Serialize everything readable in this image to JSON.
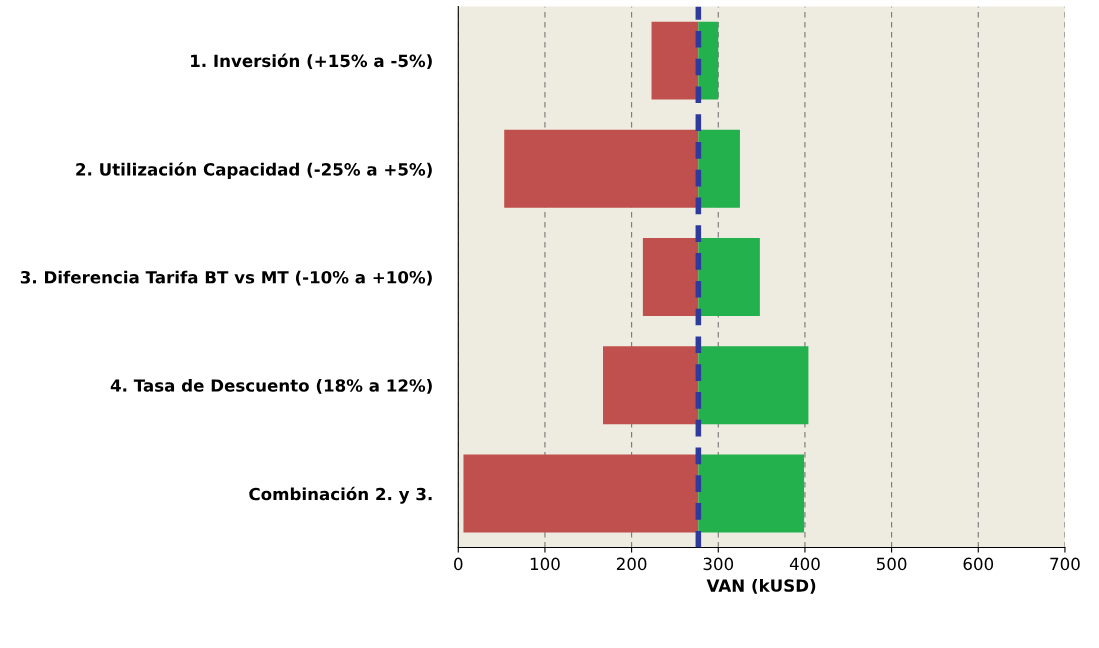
{
  "chart_data": {
    "type": "bar",
    "orientation": "horizontal",
    "xlabel": "VAN (kUSD)",
    "categories": [
      "1. Inversión (+15% a -5%)",
      "2. Utilización Capacidad (-25% a +5%)",
      "3. Diferencia Tarifa BT vs MT (-10% a +10%)",
      "4. Tasa de Descuento (18% a 12%)",
      "Combinación 2. y 3."
    ],
    "series": [
      {
        "color": "#c0504d",
        "base": [
          223,
          53,
          213,
          167,
          6
        ],
        "values": [
          54,
          224,
          64,
          110,
          271
        ]
      },
      {
        "color": "#22b14c",
        "base": [
          277,
          277,
          277,
          277,
          277
        ],
        "values": [
          23,
          48,
          71,
          127,
          122
        ]
      }
    ],
    "xlim": [
      0,
      700
    ],
    "xticks": [
      0,
      100,
      200,
      300,
      400,
      500,
      600,
      700
    ],
    "grid": "x",
    "legend": false,
    "ref_lines": [
      {
        "axis": "x",
        "value": 277,
        "label": null,
        "color": "#2f3b9c",
        "line_style": "dashed"
      }
    ]
  }
}
